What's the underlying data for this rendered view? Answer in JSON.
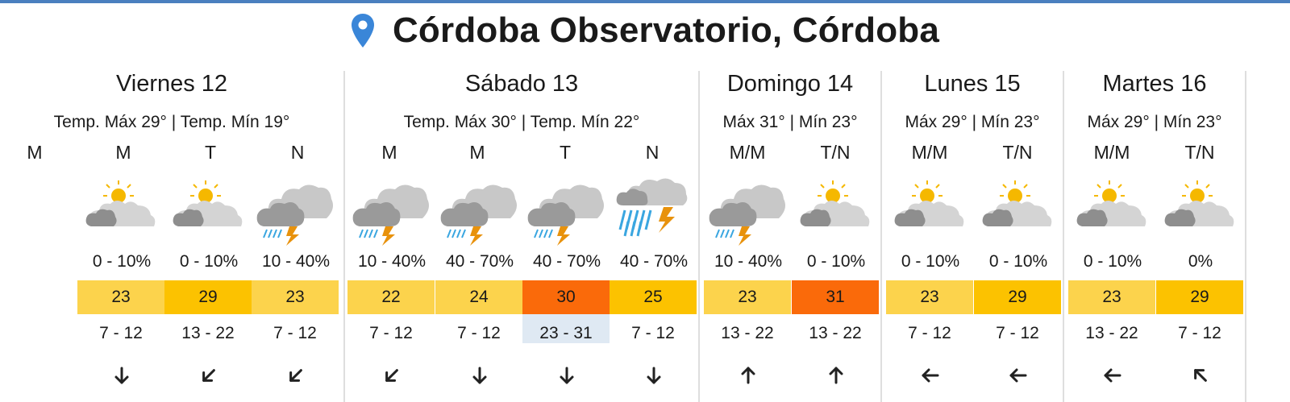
{
  "location": {
    "title": "Córdoba Observatorio, Córdoba",
    "icon": "location-pin-icon"
  },
  "colors": {
    "accent": "#4a7fbf",
    "temp_low": "#fcd34c",
    "temp_mid": "#fcc200",
    "temp_high": "#fa6a0a",
    "wind_highlight": "#dfe9f3"
  },
  "days": [
    {
      "name": "Viernes 12",
      "temps": "Temp. Máx 29° | Temp. Mín 19°",
      "periods": [
        {
          "label": "M"
        },
        {
          "label": "M",
          "icon": "partly-cloudy-icon",
          "precip": "0 - 10%",
          "temp": "23",
          "level": "low",
          "wind": "7 - 12",
          "dir": "S"
        },
        {
          "label": "T",
          "icon": "partly-cloudy-icon",
          "precip": "0 - 10%",
          "temp": "29",
          "level": "mid",
          "wind": "13 - 22",
          "dir": "SW"
        },
        {
          "label": "N",
          "icon": "thunderstorm-icon",
          "precip": "10 - 40%",
          "temp": "23",
          "level": "low",
          "wind": "7 - 12",
          "dir": "SW"
        }
      ]
    },
    {
      "name": "Sábado 13",
      "temps": "Temp. Máx 30° | Temp. Mín 22°",
      "periods": [
        {
          "label": "M",
          "icon": "thunderstorm-icon",
          "precip": "10 - 40%",
          "temp": "22",
          "level": "low",
          "wind": "7 - 12",
          "dir": "SW"
        },
        {
          "label": "M",
          "icon": "thunderstorm-icon",
          "precip": "40 - 70%",
          "temp": "24",
          "level": "low",
          "wind": "7 - 12",
          "dir": "S"
        },
        {
          "label": "T",
          "icon": "thunderstorm-icon",
          "precip": "40 - 70%",
          "temp": "30",
          "level": "high",
          "wind": "23 - 31",
          "dir": "S",
          "highlight": true
        },
        {
          "label": "N",
          "icon": "heavy-storm-icon",
          "precip": "40 - 70%",
          "temp": "25",
          "level": "mid",
          "wind": "7 - 12",
          "dir": "S"
        }
      ]
    },
    {
      "name": "Domingo 14",
      "temps": "Máx 31° | Mín 23°",
      "periods": [
        {
          "label": "M/M",
          "icon": "thunderstorm-icon",
          "precip": "10 - 40%",
          "temp": "23",
          "level": "low",
          "wind": "13 - 22",
          "dir": "N"
        },
        {
          "label": "T/N",
          "icon": "partly-cloudy-icon",
          "precip": "0 - 10%",
          "temp": "31",
          "level": "high",
          "wind": "13 - 22",
          "dir": "N"
        }
      ]
    },
    {
      "name": "Lunes 15",
      "temps": "Máx 29° | Mín 23°",
      "periods": [
        {
          "label": "M/M",
          "icon": "partly-cloudy-icon",
          "precip": "0 - 10%",
          "temp": "23",
          "level": "low",
          "wind": "7 - 12",
          "dir": "W"
        },
        {
          "label": "T/N",
          "icon": "partly-cloudy-icon",
          "precip": "0 - 10%",
          "temp": "29",
          "level": "mid",
          "wind": "7 - 12",
          "dir": "W"
        }
      ]
    },
    {
      "name": "Martes 16",
      "temps": "Máx 29° | Mín 23°",
      "periods": [
        {
          "label": "M/M",
          "icon": "partly-cloudy-icon",
          "precip": "0 - 10%",
          "temp": "23",
          "level": "low",
          "wind": "13 - 22",
          "dir": "W"
        },
        {
          "label": "T/N",
          "icon": "partly-cloudy-icon",
          "precip": "0%",
          "temp": "29",
          "level": "mid",
          "wind": "7 - 12",
          "dir": "NW"
        }
      ]
    }
  ]
}
